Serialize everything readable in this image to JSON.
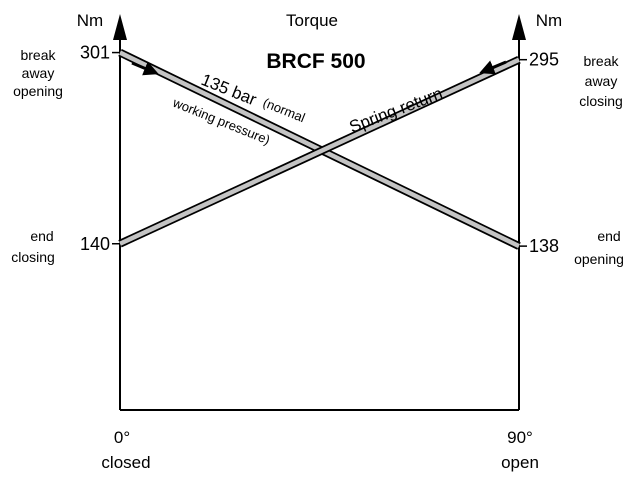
{
  "chart_data": {
    "type": "line",
    "title": "BRCF 500",
    "subtitle": "Torque",
    "ylabel_left": "Nm",
    "ylabel_right": "Nm",
    "x_ticks": [
      {
        "value": 0,
        "label": "0°",
        "state": "closed"
      },
      {
        "value": 90,
        "label": "90°",
        "state": "open"
      }
    ],
    "series": [
      {
        "name_main": "135 bar",
        "name_note_line1": "(normal",
        "name_note_line2": "working pressure)",
        "x": [
          0,
          90
        ],
        "y": [
          301,
          138
        ],
        "start_label_lines": [
          "break",
          "away",
          "opening"
        ],
        "end_label_lines": [
          "end",
          "opening"
        ],
        "start_value_label": "301",
        "end_value_label": "138",
        "color": "#c4c4c4"
      },
      {
        "name": "Spring return",
        "x": [
          0,
          90
        ],
        "y": [
          140,
          295
        ],
        "start_label_lines": [
          "end",
          "closing"
        ],
        "end_label_lines": [
          "break",
          "away",
          "closing"
        ],
        "start_value_label": "140",
        "end_value_label": "295",
        "color": "#c4c4c4"
      }
    ],
    "ylim": [
      0,
      320
    ],
    "xlim": [
      0,
      90
    ],
    "grid": false
  }
}
